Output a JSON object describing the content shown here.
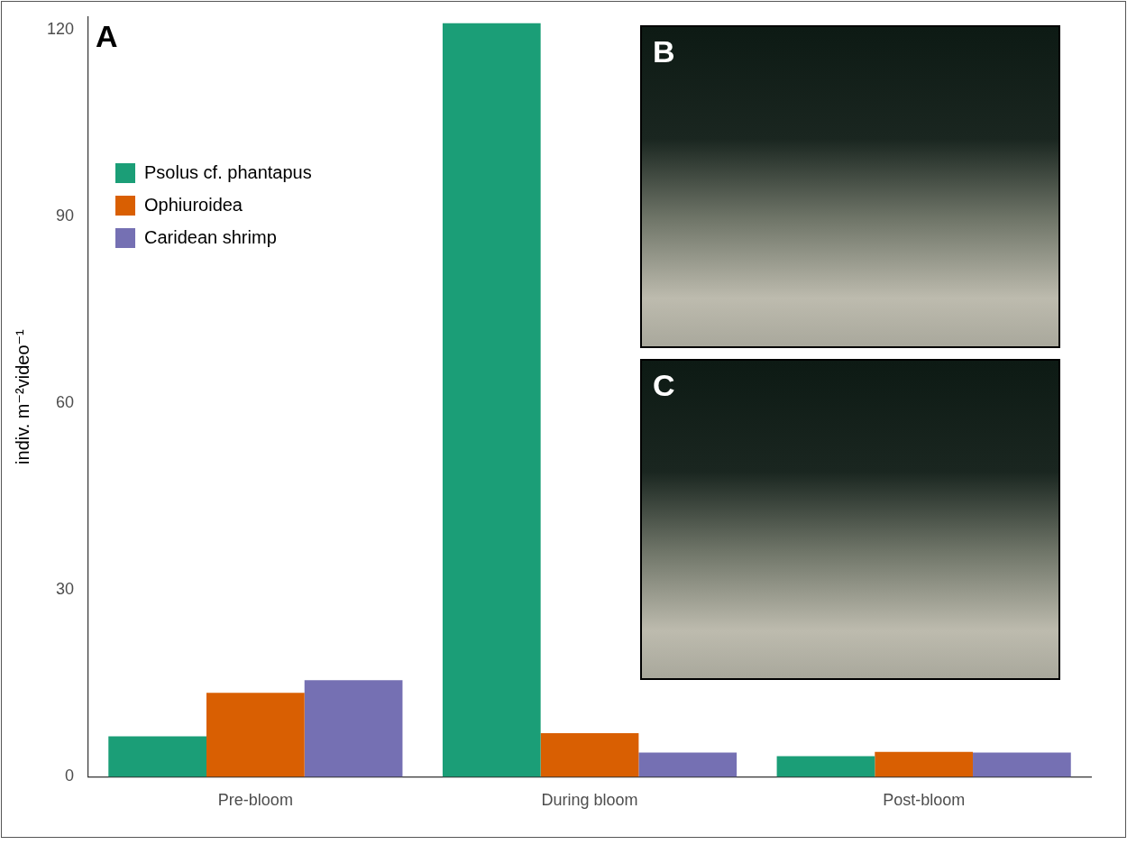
{
  "chart_data": {
    "type": "bar",
    "y_label": "indiv. m⁻²video⁻¹",
    "categories": [
      "Pre-bloom",
      "During bloom",
      "Post-bloom"
    ],
    "series": [
      {
        "name": "Psolus cf. phantapus",
        "color": "#1b9e77",
        "values": [
          6.5,
          121,
          3.3
        ]
      },
      {
        "name": "Ophiuroidea",
        "color": "#d95f02",
        "values": [
          13.5,
          7,
          4
        ]
      },
      {
        "name": "Caridean shrimp",
        "color": "#7570b3",
        "values": [
          15.5,
          3.9,
          3.9
        ]
      }
    ],
    "ylim": [
      0,
      122
    ],
    "yticks": [
      0,
      30,
      60,
      90,
      120
    ],
    "grid": false,
    "legend": "upper left",
    "annotations": [
      "A",
      "B",
      "C"
    ]
  }
}
